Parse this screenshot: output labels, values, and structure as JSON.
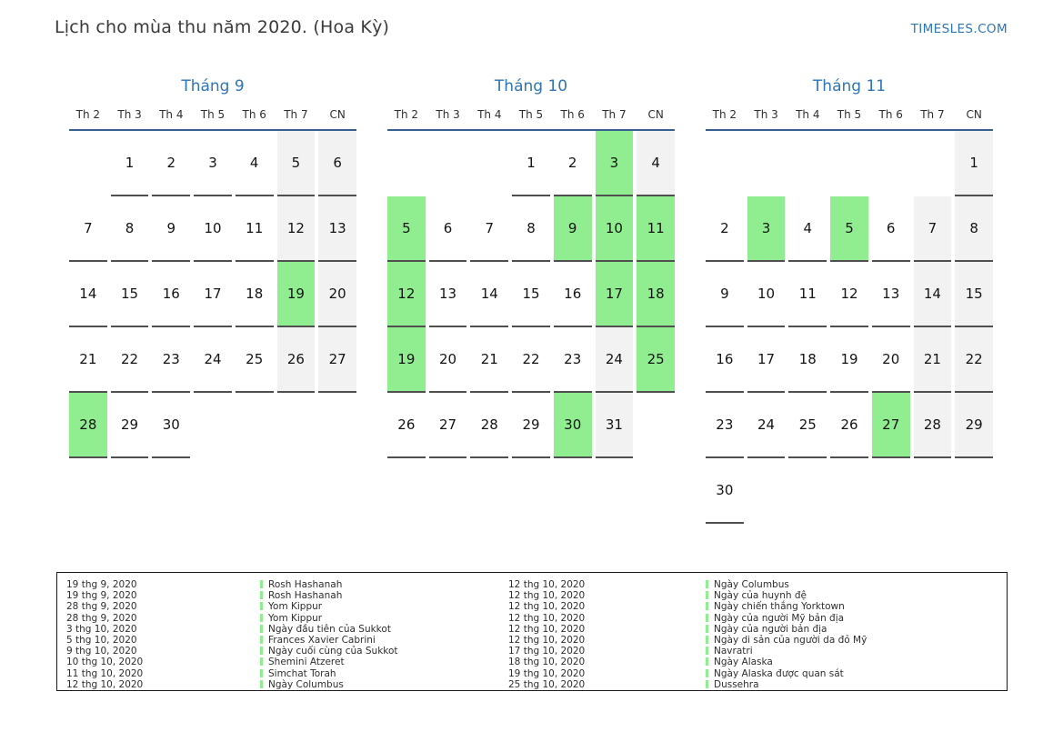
{
  "header": {
    "title": "Lịch cho mùa thu năm 2020. (Hoa Kỳ)",
    "site": "TIMESLES.COM"
  },
  "colors": {
    "accent_blue": "#2e75b6",
    "header_rule_blue": "#38618f",
    "holiday_green": "#90ee90",
    "weekend_gray": "#f2f2f2",
    "underline_gray": "#4f4f4f"
  },
  "calendar": {
    "day_headers": [
      "Th 2",
      "Th 3",
      "Th 4",
      "Th 5",
      "Th 6",
      "Th 7",
      "CN"
    ],
    "months": [
      {
        "name": "Tháng 9",
        "weeks": [
          [
            {
              "d": "",
              "t": "e"
            },
            {
              "d": "1",
              "t": "n"
            },
            {
              "d": "2",
              "t": "n"
            },
            {
              "d": "3",
              "t": "n"
            },
            {
              "d": "4",
              "t": "n"
            },
            {
              "d": "5",
              "t": "w"
            },
            {
              "d": "6",
              "t": "w"
            }
          ],
          [
            {
              "d": "7",
              "t": "n"
            },
            {
              "d": "8",
              "t": "n"
            },
            {
              "d": "9",
              "t": "n"
            },
            {
              "d": "10",
              "t": "n"
            },
            {
              "d": "11",
              "t": "n"
            },
            {
              "d": "12",
              "t": "w"
            },
            {
              "d": "13",
              "t": "w"
            }
          ],
          [
            {
              "d": "14",
              "t": "n"
            },
            {
              "d": "15",
              "t": "n"
            },
            {
              "d": "16",
              "t": "n"
            },
            {
              "d": "17",
              "t": "n"
            },
            {
              "d": "18",
              "t": "n"
            },
            {
              "d": "19",
              "t": "h"
            },
            {
              "d": "20",
              "t": "w"
            }
          ],
          [
            {
              "d": "21",
              "t": "n"
            },
            {
              "d": "22",
              "t": "n"
            },
            {
              "d": "23",
              "t": "n"
            },
            {
              "d": "24",
              "t": "n"
            },
            {
              "d": "25",
              "t": "n"
            },
            {
              "d": "26",
              "t": "w"
            },
            {
              "d": "27",
              "t": "w"
            }
          ],
          [
            {
              "d": "28",
              "t": "h"
            },
            {
              "d": "29",
              "t": "n"
            },
            {
              "d": "30",
              "t": "n"
            },
            {
              "d": "",
              "t": "e"
            },
            {
              "d": "",
              "t": "e"
            },
            {
              "d": "",
              "t": "e"
            },
            {
              "d": "",
              "t": "e"
            }
          ]
        ]
      },
      {
        "name": "Tháng 10",
        "weeks": [
          [
            {
              "d": "",
              "t": "e"
            },
            {
              "d": "",
              "t": "e"
            },
            {
              "d": "",
              "t": "e"
            },
            {
              "d": "1",
              "t": "n"
            },
            {
              "d": "2",
              "t": "n"
            },
            {
              "d": "3",
              "t": "h"
            },
            {
              "d": "4",
              "t": "w"
            }
          ],
          [
            {
              "d": "5",
              "t": "h"
            },
            {
              "d": "6",
              "t": "n"
            },
            {
              "d": "7",
              "t": "n"
            },
            {
              "d": "8",
              "t": "n"
            },
            {
              "d": "9",
              "t": "h"
            },
            {
              "d": "10",
              "t": "h"
            },
            {
              "d": "11",
              "t": "h"
            }
          ],
          [
            {
              "d": "12",
              "t": "h"
            },
            {
              "d": "13",
              "t": "n"
            },
            {
              "d": "14",
              "t": "n"
            },
            {
              "d": "15",
              "t": "n"
            },
            {
              "d": "16",
              "t": "n"
            },
            {
              "d": "17",
              "t": "h"
            },
            {
              "d": "18",
              "t": "h"
            }
          ],
          [
            {
              "d": "19",
              "t": "h"
            },
            {
              "d": "20",
              "t": "n"
            },
            {
              "d": "21",
              "t": "n"
            },
            {
              "d": "22",
              "t": "n"
            },
            {
              "d": "23",
              "t": "n"
            },
            {
              "d": "24",
              "t": "w"
            },
            {
              "d": "25",
              "t": "h"
            }
          ],
          [
            {
              "d": "26",
              "t": "n"
            },
            {
              "d": "27",
              "t": "n"
            },
            {
              "d": "28",
              "t": "n"
            },
            {
              "d": "29",
              "t": "n"
            },
            {
              "d": "30",
              "t": "h"
            },
            {
              "d": "31",
              "t": "w"
            },
            {
              "d": "",
              "t": "e"
            }
          ]
        ]
      },
      {
        "name": "Tháng 11",
        "weeks": [
          [
            {
              "d": "",
              "t": "e"
            },
            {
              "d": "",
              "t": "e"
            },
            {
              "d": "",
              "t": "e"
            },
            {
              "d": "",
              "t": "e"
            },
            {
              "d": "",
              "t": "e"
            },
            {
              "d": "",
              "t": "e"
            },
            {
              "d": "1",
              "t": "w"
            }
          ],
          [
            {
              "d": "2",
              "t": "n"
            },
            {
              "d": "3",
              "t": "h"
            },
            {
              "d": "4",
              "t": "n"
            },
            {
              "d": "5",
              "t": "h"
            },
            {
              "d": "6",
              "t": "n"
            },
            {
              "d": "7",
              "t": "w"
            },
            {
              "d": "8",
              "t": "w"
            }
          ],
          [
            {
              "d": "9",
              "t": "n"
            },
            {
              "d": "10",
              "t": "n"
            },
            {
              "d": "11",
              "t": "n"
            },
            {
              "d": "12",
              "t": "n"
            },
            {
              "d": "13",
              "t": "n"
            },
            {
              "d": "14",
              "t": "w"
            },
            {
              "d": "15",
              "t": "w"
            }
          ],
          [
            {
              "d": "16",
              "t": "n"
            },
            {
              "d": "17",
              "t": "n"
            },
            {
              "d": "18",
              "t": "n"
            },
            {
              "d": "19",
              "t": "n"
            },
            {
              "d": "20",
              "t": "n"
            },
            {
              "d": "21",
              "t": "w"
            },
            {
              "d": "22",
              "t": "w"
            }
          ],
          [
            {
              "d": "23",
              "t": "n"
            },
            {
              "d": "24",
              "t": "n"
            },
            {
              "d": "25",
              "t": "n"
            },
            {
              "d": "26",
              "t": "n"
            },
            {
              "d": "27",
              "t": "h"
            },
            {
              "d": "28",
              "t": "w"
            },
            {
              "d": "29",
              "t": "w"
            }
          ],
          [
            {
              "d": "30",
              "t": "n"
            },
            {
              "d": "",
              "t": "e"
            },
            {
              "d": "",
              "t": "e"
            },
            {
              "d": "",
              "t": "e"
            },
            {
              "d": "",
              "t": "e"
            },
            {
              "d": "",
              "t": "e"
            },
            {
              "d": "",
              "t": "e"
            }
          ]
        ]
      }
    ]
  },
  "legend": {
    "left": [
      {
        "date": "19 thg 9, 2020",
        "name": "Rosh Hashanah"
      },
      {
        "date": "19 thg 9, 2020",
        "name": "Rosh Hashanah"
      },
      {
        "date": "28 thg 9, 2020",
        "name": "Yom Kippur"
      },
      {
        "date": "28 thg 9, 2020",
        "name": "Yom Kippur"
      },
      {
        "date": "3 thg 10, 2020",
        "name": "Ngày đầu tiên của Sukkot"
      },
      {
        "date": "5 thg 10, 2020",
        "name": "Frances Xavier Cabrini"
      },
      {
        "date": "9 thg 10, 2020",
        "name": "Ngày cuối cùng của Sukkot"
      },
      {
        "date": "10 thg 10, 2020",
        "name": "Shemini Atzeret"
      },
      {
        "date": "11 thg 10, 2020",
        "name": "Simchat Torah"
      },
      {
        "date": "12 thg 10, 2020",
        "name": "Ngày Columbus"
      }
    ],
    "right": [
      {
        "date": "12 thg 10, 2020",
        "name": "Ngày Columbus"
      },
      {
        "date": "12 thg 10, 2020",
        "name": "Ngày của huynh đệ"
      },
      {
        "date": "12 thg 10, 2020",
        "name": "Ngày chiến thắng Yorktown"
      },
      {
        "date": "12 thg 10, 2020",
        "name": "Ngày của người Mỹ bản địa"
      },
      {
        "date": "12 thg 10, 2020",
        "name": "Ngày của người bản địa"
      },
      {
        "date": "12 thg 10, 2020",
        "name": "Ngày di sản của người da đỏ Mỹ"
      },
      {
        "date": "17 thg 10, 2020",
        "name": "Navratri"
      },
      {
        "date": "18 thg 10, 2020",
        "name": "Ngày Alaska"
      },
      {
        "date": "19 thg 10, 2020",
        "name": "Ngày Alaska được quan sát"
      },
      {
        "date": "25 thg 10, 2020",
        "name": "Dussehra"
      }
    ]
  }
}
